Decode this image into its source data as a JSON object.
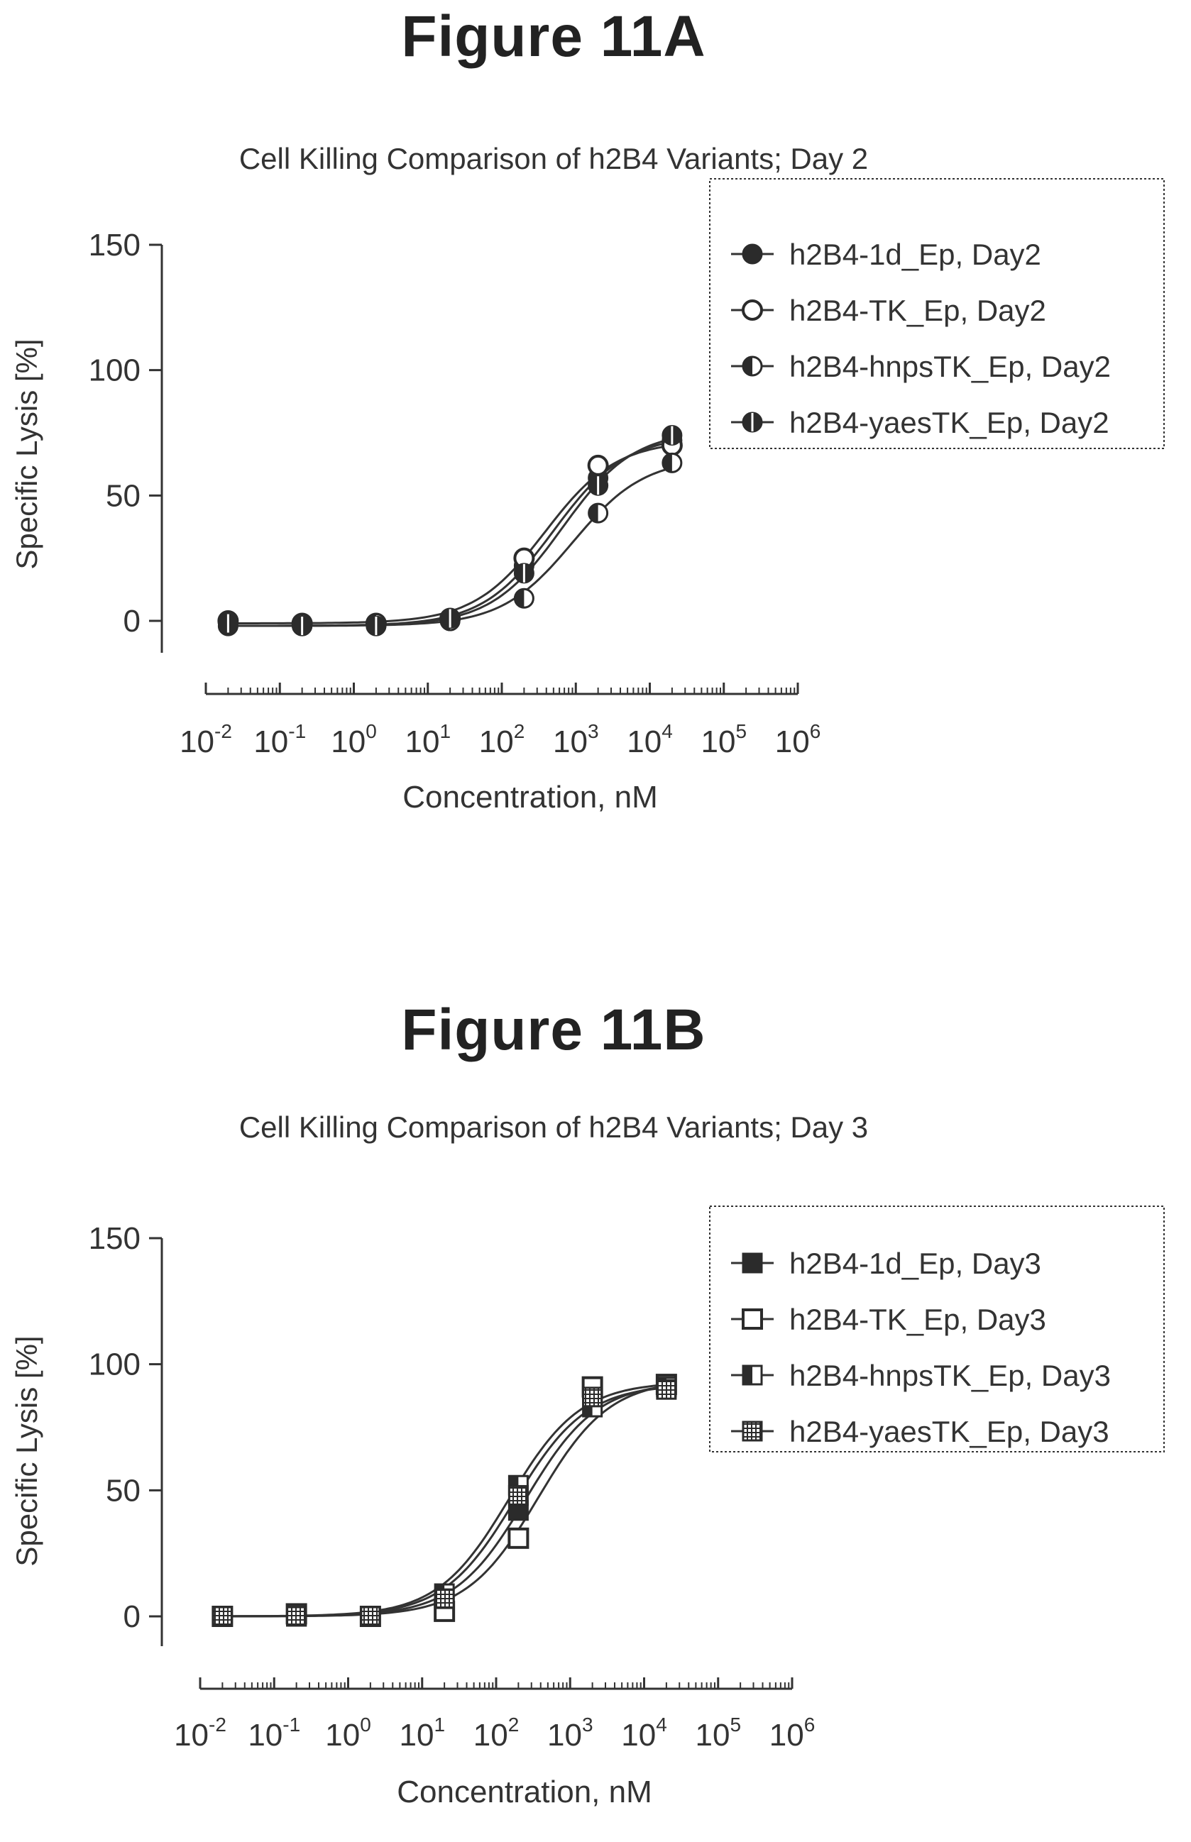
{
  "chart_data": [
    {
      "figure_label": "Figure 11A",
      "type": "scatter",
      "title": "Cell Killing Comparison of h2B4 Variants; Day 2",
      "xlabel": "Concentration, nM",
      "ylabel": "Specific Lysis [%]",
      "xscale": "log",
      "xlim": [
        0.01,
        1000000
      ],
      "ylim": [
        -10,
        150
      ],
      "yticks": [
        0,
        50,
        100,
        150
      ],
      "xtick_labels": [
        {
          "base": "10",
          "exp": "-2"
        },
        {
          "base": "10",
          "exp": "-1"
        },
        {
          "base": "10",
          "exp": "0"
        },
        {
          "base": "10",
          "exp": "1"
        },
        {
          "base": "10",
          "exp": "2"
        },
        {
          "base": "10",
          "exp": "3"
        },
        {
          "base": "10",
          "exp": "4"
        },
        {
          "base": "10",
          "exp": "5"
        },
        {
          "base": "10",
          "exp": "6"
        }
      ],
      "legend_position": "top-right",
      "marker_shape": "circle",
      "x": [
        0.02,
        0.2,
        2,
        20,
        200,
        2000,
        20000
      ],
      "series": [
        {
          "name": "h2B4-1d_Ep, Day2",
          "marker_fill": "solid",
          "values": [
            -2,
            -2,
            -2,
            0,
            22,
            57,
            72
          ]
        },
        {
          "name": "h2B4-TK_Ep, Day2",
          "marker_fill": "open",
          "values": [
            0,
            -1,
            -1,
            1,
            25,
            62,
            70
          ]
        },
        {
          "name": "h2B4-hnpsTK_Ep, Day2",
          "marker_fill": "left-half",
          "values": [
            -1,
            -2,
            -1,
            0,
            9,
            43,
            63
          ]
        },
        {
          "name": "h2B4-yaesTK_Ep, Day2",
          "marker_fill": "vertical-half",
          "values": [
            -1,
            -2,
            -2,
            1,
            19,
            54,
            74
          ]
        }
      ]
    },
    {
      "figure_label": "Figure 11B",
      "type": "scatter",
      "title": "Cell Killing Comparison of h2B4 Variants; Day 3",
      "xlabel": "Concentration, nM",
      "ylabel": "Specific Lysis [%]",
      "xscale": "log",
      "xlim": [
        0.01,
        1000000
      ],
      "ylim": [
        -10,
        150
      ],
      "yticks": [
        0,
        50,
        100,
        150
      ],
      "xtick_labels": [
        {
          "base": "10",
          "exp": "-2"
        },
        {
          "base": "10",
          "exp": "-1"
        },
        {
          "base": "10",
          "exp": "0"
        },
        {
          "base": "10",
          "exp": "1"
        },
        {
          "base": "10",
          "exp": "2"
        },
        {
          "base": "10",
          "exp": "3"
        },
        {
          "base": "10",
          "exp": "4"
        },
        {
          "base": "10",
          "exp": "5"
        },
        {
          "base": "10",
          "exp": "6"
        }
      ],
      "legend_position": "top-right",
      "marker_shape": "square",
      "x": [
        0.02,
        0.2,
        2,
        20,
        200,
        2000,
        20000
      ],
      "series": [
        {
          "name": "h2B4-1d_Ep, Day3",
          "marker_fill": "solid",
          "values": [
            0,
            0,
            0,
            5,
            42,
            88,
            91
          ]
        },
        {
          "name": "h2B4-TK_Ep, Day3",
          "marker_fill": "open",
          "values": [
            0,
            1,
            0,
            2,
            31,
            91,
            92
          ]
        },
        {
          "name": "h2B4-hnpsTK_Ep, Day3",
          "marker_fill": "half",
          "values": [
            0,
            0,
            0,
            9,
            52,
            83,
            91
          ]
        },
        {
          "name": "h2B4-yaesTK_Ep, Day3",
          "marker_fill": "hatched",
          "values": [
            0,
            0,
            0,
            7,
            48,
            87,
            90
          ]
        }
      ]
    }
  ],
  "colors": {
    "ink": "#333333",
    "marker": "#2b2b2b",
    "heading": "#222222"
  }
}
